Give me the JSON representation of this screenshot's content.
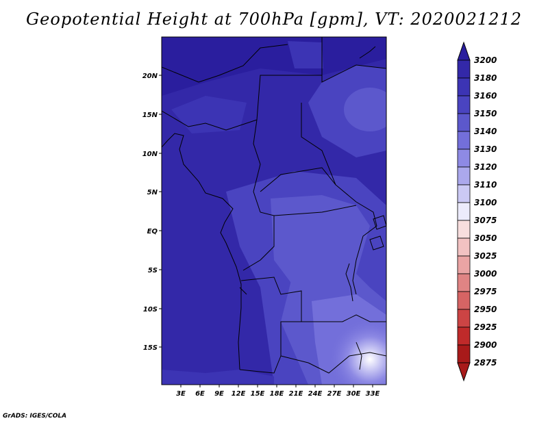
{
  "title": "Geopotential Height at 700hPa [gpm], VT: 2020021212",
  "credit": "GrADS: IGES/COLA",
  "map": {
    "lat_labels": [
      "20N",
      "15N",
      "10N",
      "5N",
      "EQ",
      "5S",
      "10S",
      "15S"
    ],
    "lon_labels": [
      "3E",
      "6E",
      "9E",
      "12E",
      "15E",
      "18E",
      "21E",
      "24E",
      "27E",
      "30E",
      "33E"
    ]
  },
  "colorbar": {
    "levels": [
      "3200",
      "3180",
      "3160",
      "3150",
      "3140",
      "3130",
      "3120",
      "3110",
      "3100",
      "3075",
      "3050",
      "3025",
      "3000",
      "2975",
      "2950",
      "2925",
      "2900",
      "2875"
    ],
    "colors": [
      "#2a1e9e",
      "#3328a8",
      "#3c34b4",
      "#4a44c0",
      "#5c58cc",
      "#736fda",
      "#8e8ae4",
      "#aba8ec",
      "#cbc9f4",
      "#ecebfb",
      "#f8dede",
      "#f2c2c2",
      "#eaa4a4",
      "#e08484",
      "#d66464",
      "#cc4444",
      "#bf2a2a",
      "#a81a1a"
    ]
  }
}
